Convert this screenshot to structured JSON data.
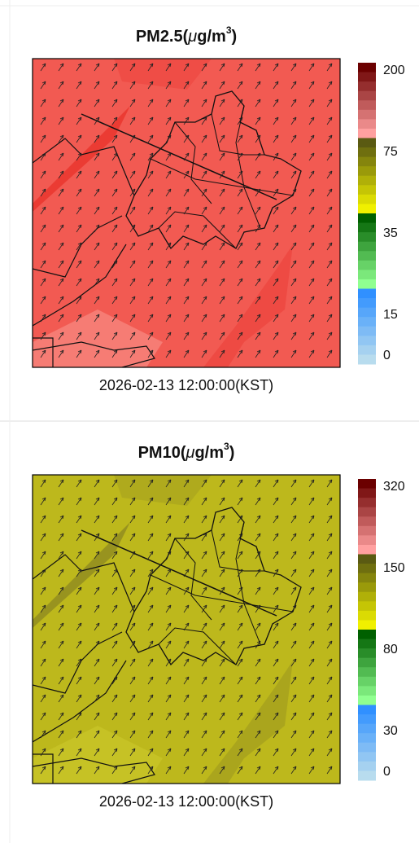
{
  "panels": [
    {
      "title": {
        "prefix": "PM2.5(",
        "mu": "μ",
        "unit": "g/m",
        "sup": "3",
        "suffix": ")"
      },
      "colorbar_labels": [
        200,
        75,
        35,
        15,
        0
      ],
      "timestamp": "2026-02-13 12:00:00(KST)"
    },
    {
      "title": {
        "prefix": "PM10(",
        "mu": "μ",
        "unit": "g/m",
        "sup": "3",
        "suffix": ")"
      },
      "colorbar_labels": [
        320,
        150,
        80,
        30,
        0
      ],
      "timestamp": "2026-02-13 12:00:00(KST)"
    }
  ]
}
